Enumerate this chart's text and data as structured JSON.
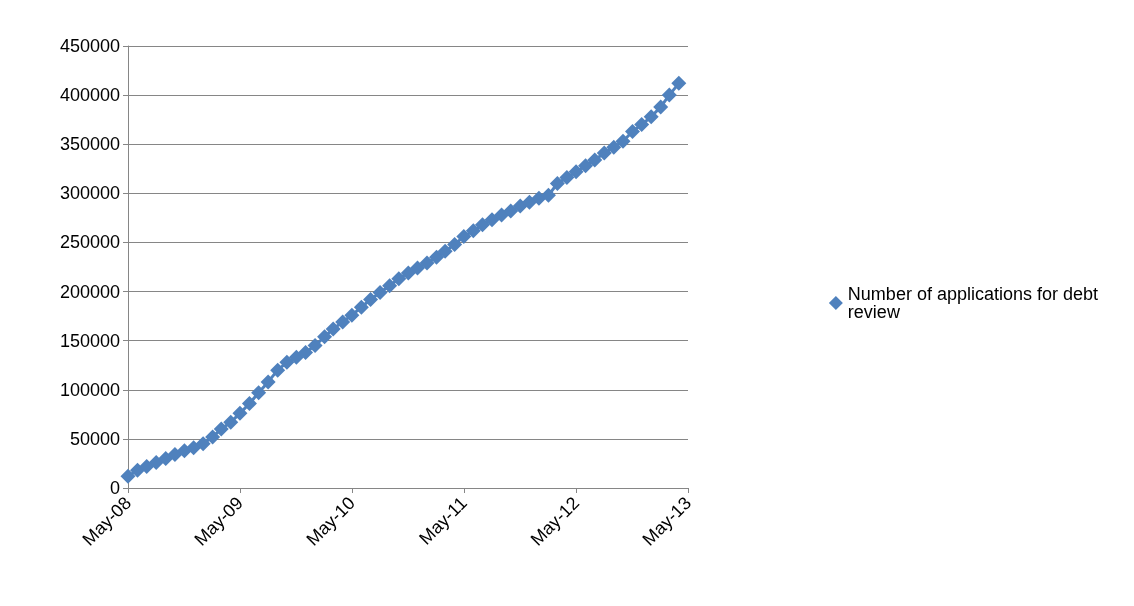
{
  "chart_data": {
    "type": "line",
    "x": [
      "2008-05",
      "2008-06",
      "2008-07",
      "2008-08",
      "2008-09",
      "2008-10",
      "2008-11",
      "2008-12",
      "2009-01",
      "2009-02",
      "2009-03",
      "2009-04",
      "2009-05",
      "2009-06",
      "2009-07",
      "2009-08",
      "2009-09",
      "2009-10",
      "2009-11",
      "2009-12",
      "2010-01",
      "2010-02",
      "2010-03",
      "2010-04",
      "2010-05",
      "2010-06",
      "2010-07",
      "2010-08",
      "2010-09",
      "2010-10",
      "2010-11",
      "2010-12",
      "2011-01",
      "2011-02",
      "2011-03",
      "2011-04",
      "2011-05",
      "2011-06",
      "2011-07",
      "2011-08",
      "2011-09",
      "2011-10",
      "2011-11",
      "2011-12",
      "2012-01",
      "2012-02",
      "2012-03",
      "2012-04",
      "2012-05",
      "2012-06",
      "2012-07",
      "2012-08",
      "2012-09",
      "2012-10",
      "2012-11",
      "2012-12",
      "2013-01",
      "2013-02",
      "2013-03",
      "2013-04"
    ],
    "series": [
      {
        "name": "Number of applications for debt review",
        "color": "#4f81bd",
        "values": [
          12000,
          18000,
          22000,
          26000,
          30000,
          34000,
          38000,
          41000,
          45000,
          52000,
          60000,
          67000,
          76000,
          86000,
          97000,
          108000,
          120000,
          128000,
          133000,
          138000,
          145000,
          154000,
          162000,
          169000,
          176000,
          184000,
          192000,
          199000,
          206000,
          213000,
          219000,
          224000,
          229000,
          235000,
          241000,
          248000,
          256000,
          262000,
          268000,
          273000,
          278000,
          282000,
          287000,
          291000,
          295000,
          298000,
          310000,
          316000,
          322000,
          328000,
          334000,
          341000,
          347000,
          353000,
          363000,
          370000,
          378000,
          388000,
          400000,
          412000
        ]
      }
    ],
    "xlim": [
      "2008-05",
      "2013-05"
    ],
    "xticks": [
      {
        "value": "2008-05",
        "label": "May-08"
      },
      {
        "value": "2009-05",
        "label": "May-09"
      },
      {
        "value": "2010-05",
        "label": "May-10"
      },
      {
        "value": "2011-05",
        "label": "May-11"
      },
      {
        "value": "2012-05",
        "label": "May-12"
      },
      {
        "value": "2013-05",
        "label": "May-13"
      }
    ],
    "ylim": [
      0,
      450000
    ],
    "yticks": [
      0,
      50000,
      100000,
      150000,
      200000,
      250000,
      300000,
      350000,
      400000,
      450000
    ],
    "grid": "y",
    "legend": "right",
    "marker": "diamond"
  }
}
